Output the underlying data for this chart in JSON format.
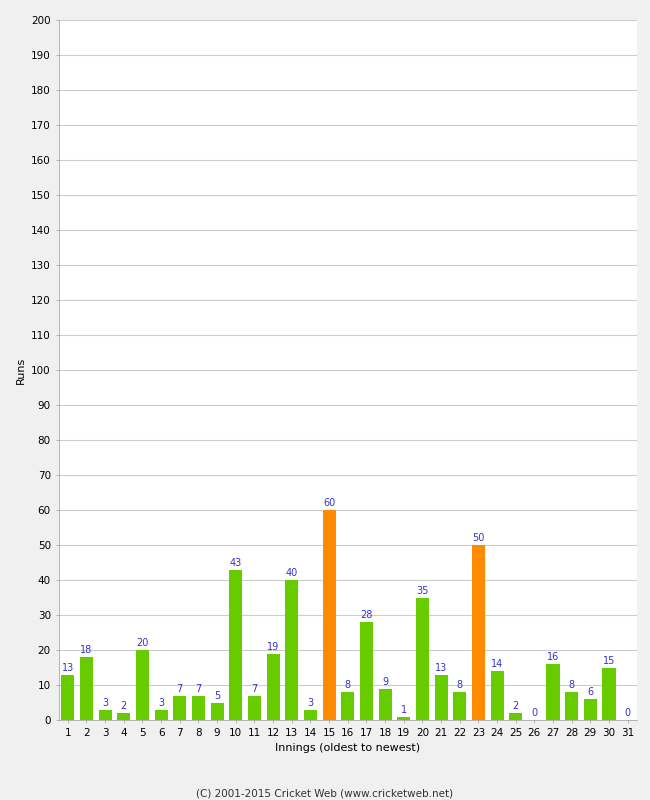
{
  "innings": [
    1,
    2,
    3,
    4,
    5,
    6,
    7,
    8,
    9,
    10,
    11,
    12,
    13,
    14,
    15,
    16,
    17,
    18,
    19,
    20,
    21,
    22,
    23,
    24,
    25,
    26,
    27,
    28,
    29,
    30,
    31
  ],
  "runs": [
    13,
    18,
    3,
    2,
    20,
    3,
    7,
    7,
    5,
    43,
    7,
    19,
    40,
    3,
    60,
    8,
    28,
    9,
    1,
    35,
    13,
    8,
    50,
    14,
    2,
    0,
    16,
    8,
    6,
    15,
    0
  ],
  "bar_colors": [
    "#66cc00",
    "#66cc00",
    "#66cc00",
    "#66cc00",
    "#66cc00",
    "#66cc00",
    "#66cc00",
    "#66cc00",
    "#66cc00",
    "#66cc00",
    "#66cc00",
    "#66cc00",
    "#66cc00",
    "#66cc00",
    "#ff8c00",
    "#66cc00",
    "#66cc00",
    "#66cc00",
    "#66cc00",
    "#66cc00",
    "#66cc00",
    "#66cc00",
    "#ff8c00",
    "#66cc00",
    "#66cc00",
    "#66cc00",
    "#66cc00",
    "#66cc00",
    "#66cc00",
    "#66cc00",
    "#66cc00"
  ],
  "ylabel": "Runs",
  "xlabel": "Innings (oldest to newest)",
  "ylim": [
    0,
    200
  ],
  "yticks": [
    0,
    10,
    20,
    30,
    40,
    50,
    60,
    70,
    80,
    90,
    100,
    110,
    120,
    130,
    140,
    150,
    160,
    170,
    180,
    190,
    200
  ],
  "label_color": "#3333cc",
  "label_fontsize": 7,
  "axis_label_fontsize": 8,
  "tick_fontsize": 7.5,
  "footer": "(C) 2001-2015 Cricket Web (www.cricketweb.net)",
  "background_color": "#f0f0f0",
  "plot_background": "#ffffff",
  "grid_color": "#cccccc"
}
